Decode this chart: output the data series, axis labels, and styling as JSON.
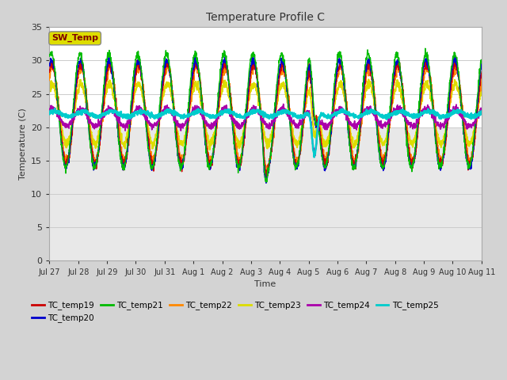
{
  "title": "Temperature Profile C",
  "xlabel": "Time",
  "ylabel": "Temperature (C)",
  "ylim": [
    0,
    35
  ],
  "series_colors": {
    "TC_temp19": "#cc0000",
    "TC_temp20": "#0000cc",
    "TC_temp21": "#00bb00",
    "TC_temp22": "#ff8800",
    "TC_temp23": "#dddd00",
    "TC_temp24": "#aa00aa",
    "TC_temp25": "#00cccc"
  },
  "SW_Temp_box_color": "#dddd00",
  "SW_Temp_text_color": "#800000",
  "background_color": "#d3d3d3",
  "plot_bg_color": "#ffffff",
  "xtick_labels": [
    "Jul 27",
    "Jul 28",
    "Jul 29",
    "Jul 30",
    "Jul 31",
    "Aug 1",
    "Aug 2",
    "Aug 3",
    "Aug 4",
    "Aug 5",
    "Aug 6",
    "Aug 7",
    "Aug 8",
    "Aug 9",
    "Aug 10",
    "Aug 11"
  ]
}
